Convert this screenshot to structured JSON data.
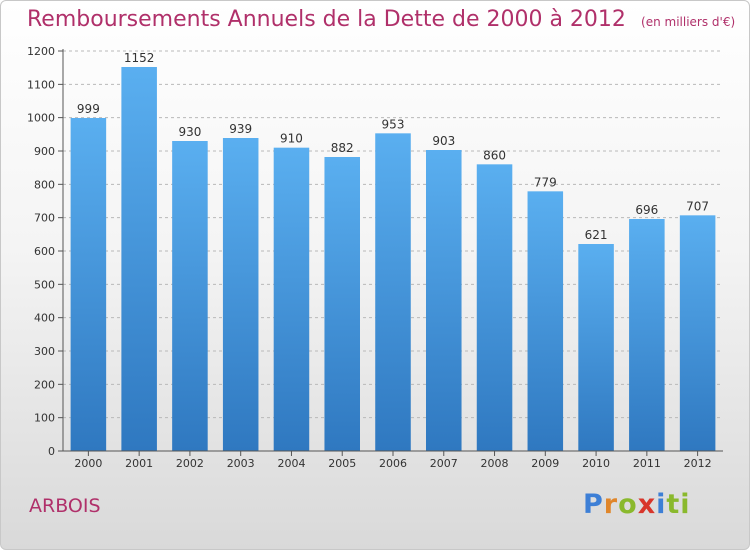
{
  "chart_data": {
    "type": "bar",
    "title": "Remboursements Annuels de la Dette de 2000 à 2012",
    "unit_note": "(en milliers d'€)",
    "categories": [
      "2000",
      "2001",
      "2002",
      "2003",
      "2004",
      "2005",
      "2006",
      "2007",
      "2008",
      "2009",
      "2010",
      "2011",
      "2012"
    ],
    "values": [
      999,
      1152,
      930,
      939,
      910,
      882,
      953,
      903,
      860,
      779,
      621,
      696,
      707
    ],
    "ylim": [
      0,
      1200
    ],
    "yticks": [
      0,
      100,
      200,
      300,
      400,
      500,
      600,
      700,
      800,
      900,
      1000,
      1100,
      1200
    ],
    "grid": true,
    "bar_color": "#3f8fd8"
  },
  "commune": "ARBOIS",
  "logo": {
    "letters": [
      "P",
      "r",
      "o",
      "x",
      "i",
      "ti"
    ],
    "colors": [
      "#3d7fd6",
      "#e0862a",
      "#8ab92d",
      "#d8362b",
      "#3d7fd6",
      "#8ab92d"
    ]
  }
}
